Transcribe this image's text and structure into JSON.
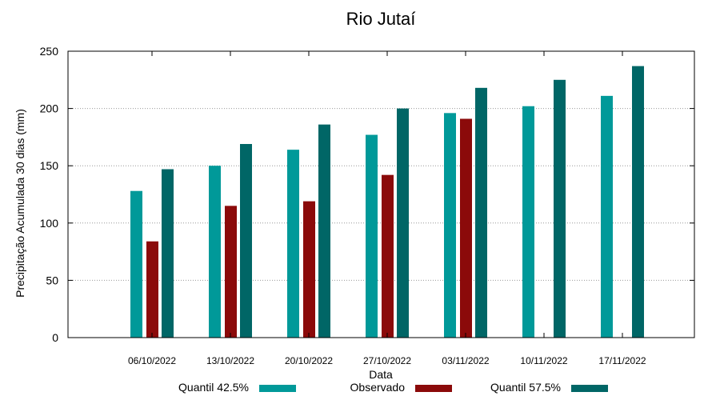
{
  "chart_data": {
    "type": "bar",
    "title": "Rio Jutaí",
    "xlabel": "Data",
    "ylabel": "Precipitação Acumulada 30 dias (mm)",
    "ylim": [
      0,
      250
    ],
    "yticks": [
      0,
      50,
      100,
      150,
      200,
      250
    ],
    "grid": true,
    "legend_position": "bottom",
    "categories": [
      "06/10/2022",
      "13/10/2022",
      "20/10/2022",
      "27/10/2022",
      "03/11/2022",
      "10/11/2022",
      "17/11/2022"
    ],
    "series": [
      {
        "name": "Quantil 42.5%",
        "color": "#009999",
        "values": [
          128,
          150,
          164,
          177,
          196,
          202,
          211
        ]
      },
      {
        "name": "Observado",
        "color": "#8b0a0a",
        "values": [
          84,
          115,
          119,
          142,
          191,
          null,
          null
        ]
      },
      {
        "name": "Quantil 57.5%",
        "color": "#006666",
        "values": [
          147,
          169,
          186,
          200,
          218,
          225,
          237
        ]
      }
    ]
  }
}
